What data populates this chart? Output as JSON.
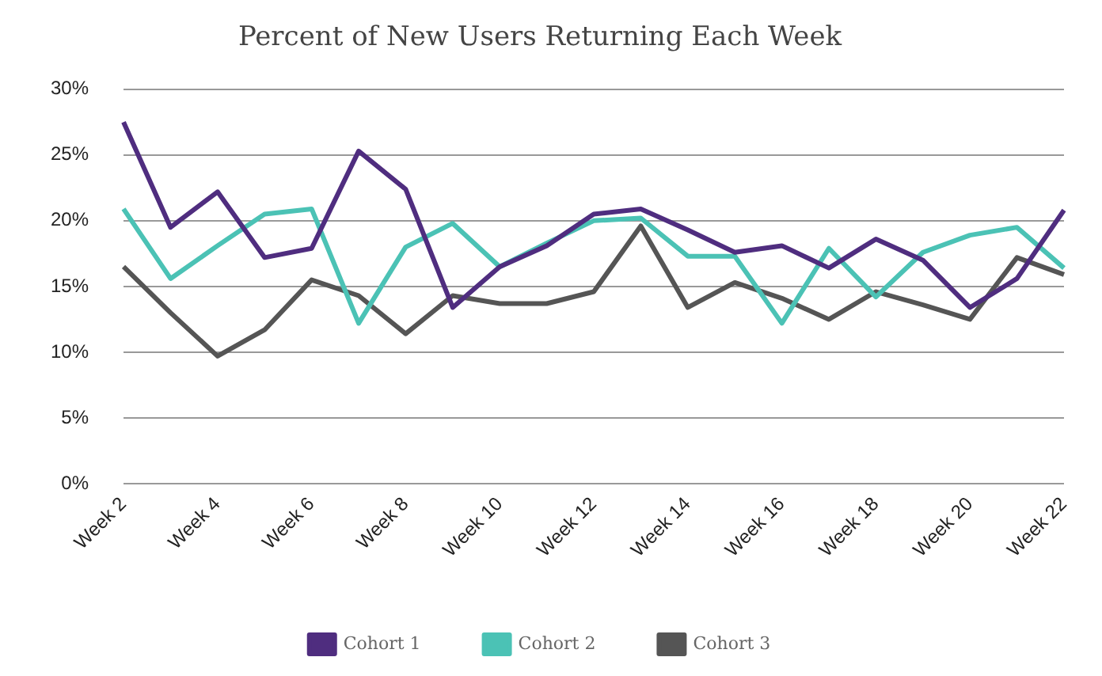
{
  "chart_data": {
    "type": "line",
    "title": "Percent of New Users Returning Each Week",
    "categories": [
      "Week 2",
      null,
      "Week 4",
      null,
      "Week 6",
      null,
      "Week 8",
      null,
      "Week 10",
      null,
      "Week 12",
      null,
      "Week 14",
      null,
      "Week 16",
      null,
      "Week 18",
      null,
      "Week 20",
      null,
      "Week 22"
    ],
    "series": [
      {
        "name": "Cohort 1",
        "color": "#4f2d7f",
        "values": [
          27.5,
          19.5,
          22.2,
          17.2,
          17.9,
          25.3,
          22.4,
          13.4,
          16.5,
          18.1,
          20.5,
          20.9,
          19.3,
          17.6,
          18.1,
          16.4,
          18.6,
          17.0,
          13.4,
          15.6,
          20.8
        ]
      },
      {
        "name": "Cohort 2",
        "color": "#4bc2b5",
        "values": [
          20.9,
          15.6,
          18.1,
          20.5,
          20.9,
          12.2,
          18.0,
          19.8,
          16.5,
          18.3,
          20.0,
          20.2,
          17.3,
          17.3,
          12.2,
          17.9,
          14.2,
          17.6,
          18.9,
          19.5,
          16.4
        ]
      },
      {
        "name": "Cohort 3",
        "color": "#555555",
        "values": [
          16.5,
          13.0,
          9.7,
          11.7,
          15.5,
          14.3,
          11.4,
          14.3,
          13.7,
          13.7,
          14.6,
          19.6,
          13.4,
          15.3,
          14.1,
          12.5,
          14.6,
          13.6,
          12.5,
          17.2,
          15.9
        ]
      }
    ],
    "ylim": [
      0,
      30
    ],
    "yticks": [
      {
        "value": 0,
        "label": "0%"
      },
      {
        "value": 5,
        "label": "5%"
      },
      {
        "value": 10,
        "label": "10%"
      },
      {
        "value": 15,
        "label": "15%"
      },
      {
        "value": 20,
        "label": "20%"
      },
      {
        "value": 25,
        "label": "25%"
      },
      {
        "value": 30,
        "label": "30%"
      }
    ],
    "grid": "y",
    "legend": "bottom",
    "marker": "none",
    "line_style": "solid"
  }
}
